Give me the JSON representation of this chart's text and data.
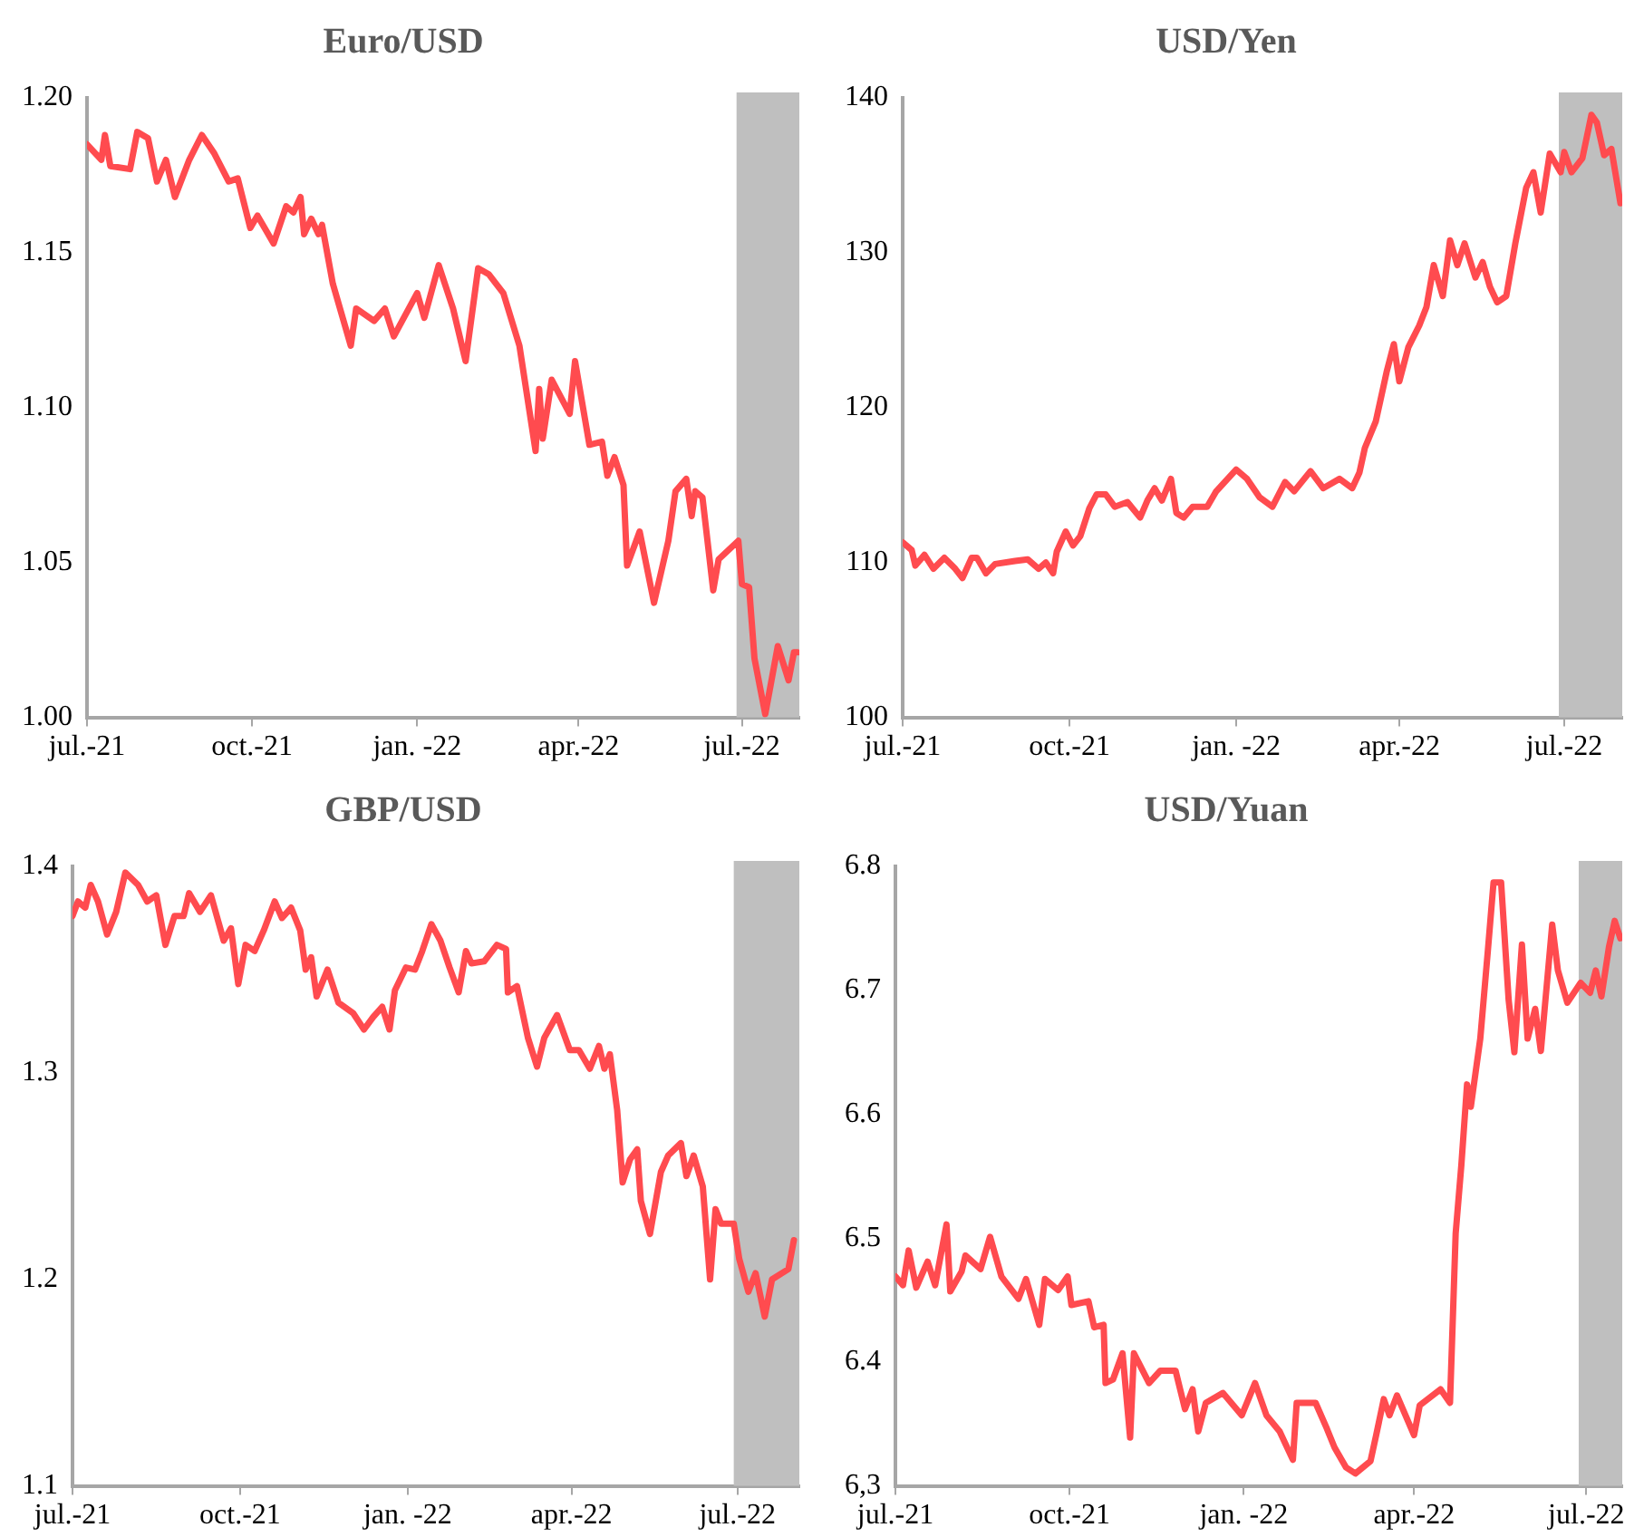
{
  "chart_data": [
    {
      "type": "line",
      "title": "Euro/USD",
      "color": "#ff4b4f",
      "marker": "none",
      "x": [
        "2021-07-01",
        "2021-07-09",
        "2021-07-11",
        "2021-07-14",
        "2021-07-25",
        "2021-07-29",
        "2021-08-04",
        "2021-08-09",
        "2021-08-14",
        "2021-08-19",
        "2021-08-27",
        "2021-09-03",
        "2021-09-10",
        "2021-09-18",
        "2021-09-23",
        "2021-09-30",
        "2021-10-04",
        "2021-10-13",
        "2021-10-20",
        "2021-10-24",
        "2021-10-28",
        "2021-10-30",
        "2021-11-03",
        "2021-11-07",
        "2021-11-09",
        "2021-11-15",
        "2021-11-25",
        "2021-11-28",
        "2021-12-08",
        "2021-12-14",
        "2021-12-19",
        "2022-01-01",
        "2022-01-05",
        "2022-01-13",
        "2022-01-21",
        "2022-01-28",
        "2022-02-04",
        "2022-02-10",
        "2022-02-18",
        "2022-02-27",
        "2022-03-08",
        "2022-03-10",
        "2022-03-12",
        "2022-03-17",
        "2022-03-27",
        "2022-03-30",
        "2022-04-07",
        "2022-04-14",
        "2022-04-17",
        "2022-04-21",
        "2022-04-26",
        "2022-04-28",
        "2022-05-05",
        "2022-05-13",
        "2022-05-21",
        "2022-05-25",
        "2022-05-31",
        "2022-06-03",
        "2022-06-05",
        "2022-06-09",
        "2022-06-15",
        "2022-06-18",
        "2022-06-29",
        "2022-07-01",
        "2022-07-05",
        "2022-07-08",
        "2022-07-14",
        "2022-07-21",
        "2022-07-27",
        "2022-07-30",
        "2022-08-01"
      ],
      "values": [
        1.185,
        1.18,
        1.188,
        1.178,
        1.177,
        1.189,
        1.187,
        1.173,
        1.18,
        1.168,
        1.18,
        1.188,
        1.182,
        1.173,
        1.174,
        1.158,
        1.162,
        1.153,
        1.165,
        1.163,
        1.168,
        1.156,
        1.161,
        1.156,
        1.159,
        1.14,
        1.12,
        1.132,
        1.128,
        1.132,
        1.123,
        1.137,
        1.129,
        1.146,
        1.132,
        1.115,
        1.145,
        1.143,
        1.137,
        1.12,
        1.086,
        1.106,
        1.09,
        1.109,
        1.098,
        1.115,
        1.088,
        1.089,
        1.078,
        1.084,
        1.075,
        1.049,
        1.06,
        1.037,
        1.057,
        1.073,
        1.077,
        1.065,
        1.073,
        1.071,
        1.041,
        1.051,
        1.057,
        1.043,
        1.042,
        1.019,
        1.001,
        1.023,
        1.012,
        1.021,
        1.021
      ],
      "xlim": [
        "2021-07-01",
        "2022-08-02"
      ],
      "xticks": [
        {
          "value": "2021-07-01",
          "label": "jul.-21"
        },
        {
          "value": "2021-10-01",
          "label": "oct.-21"
        },
        {
          "value": "2022-01-01",
          "label": "jan. -22"
        },
        {
          "value": "2022-04-01",
          "label": "apr.-22"
        },
        {
          "value": "2022-07-01",
          "label": "jul.-22"
        }
      ],
      "ylim": [
        1.0,
        1.2
      ],
      "yticks": [
        {
          "value": 1.0,
          "label": "1.00"
        },
        1.05,
        {
          "value": 1.1,
          "label": "1.10"
        },
        1.15,
        {
          "value": 1.2,
          "label": "1.20"
        }
      ],
      "bands": [
        {
          "axis": "x",
          "from": "2022-06-28",
          "to": "2022-08-02",
          "color": "#bfbfbf"
        }
      ]
    },
    {
      "type": "line",
      "title": "USD/Yen",
      "color": "#ff4b4f",
      "marker": "none",
      "x": [
        "2021-07-01",
        "2021-07-06",
        "2021-07-08",
        "2021-07-13",
        "2021-07-18",
        "2021-07-24",
        "2021-07-30",
        "2021-08-03",
        "2021-08-08",
        "2021-08-11",
        "2021-08-16",
        "2021-08-21",
        "2021-09-01",
        "2021-09-08",
        "2021-09-14",
        "2021-09-18",
        "2021-09-22",
        "2021-09-24",
        "2021-09-29",
        "2021-10-03",
        "2021-10-07",
        "2021-10-12",
        "2021-10-16",
        "2021-10-21",
        "2021-10-26",
        "2021-11-02",
        "2021-11-09",
        "2021-11-13",
        "2021-11-17",
        "2021-11-21",
        "2021-11-26",
        "2021-11-29",
        "2021-12-03",
        "2021-12-08",
        "2021-12-16",
        "2021-12-21",
        "2022-01-01",
        "2022-01-07",
        "2022-01-14",
        "2022-01-21",
        "2022-01-28",
        "2022-02-02",
        "2022-02-11",
        "2022-02-18",
        "2022-02-27",
        "2022-03-06",
        "2022-03-10",
        "2022-03-13",
        "2022-03-19",
        "2022-03-25",
        "2022-03-29",
        "2022-04-01",
        "2022-04-06",
        "2022-04-12",
        "2022-04-16",
        "2022-04-20",
        "2022-04-25",
        "2022-04-29",
        "2022-05-03",
        "2022-05-07",
        "2022-05-13",
        "2022-05-17",
        "2022-05-21",
        "2022-05-25",
        "2022-05-30",
        "2022-06-04",
        "2022-06-10",
        "2022-06-14",
        "2022-06-18",
        "2022-06-23",
        "2022-06-29",
        "2022-07-01",
        "2022-07-05",
        "2022-07-11",
        "2022-07-16",
        "2022-07-19",
        "2022-07-23",
        "2022-07-27",
        "2022-08-01"
      ],
      "values": [
        111.3,
        110.8,
        109.8,
        110.5,
        109.6,
        110.3,
        109.6,
        109.0,
        110.3,
        110.3,
        109.3,
        109.9,
        110.1,
        110.2,
        109.6,
        110.0,
        109.3,
        110.7,
        112.0,
        111.1,
        111.7,
        113.5,
        114.4,
        114.4,
        113.6,
        113.9,
        112.9,
        114.0,
        114.8,
        114.0,
        115.4,
        113.2,
        112.9,
        113.6,
        113.6,
        114.6,
        116.0,
        115.4,
        114.2,
        113.6,
        115.2,
        114.6,
        115.9,
        114.8,
        115.4,
        114.8,
        115.8,
        117.4,
        119.1,
        122.3,
        124.1,
        121.7,
        123.9,
        125.3,
        126.5,
        129.2,
        127.2,
        130.8,
        129.2,
        130.6,
        128.4,
        129.4,
        127.8,
        126.8,
        127.2,
        130.6,
        134.2,
        135.2,
        132.6,
        136.4,
        135.2,
        136.5,
        135.2,
        136.1,
        138.9,
        138.4,
        136.3,
        136.7,
        133.2
      ],
      "xlim": [
        "2021-07-01",
        "2022-08-02"
      ],
      "xticks": [
        {
          "value": "2021-07-01",
          "label": "jul.-21"
        },
        {
          "value": "2021-10-01",
          "label": "oct.-21"
        },
        {
          "value": "2022-01-01",
          "label": "jan. -22"
        },
        {
          "value": "2022-04-01",
          "label": "apr.-22"
        },
        {
          "value": "2022-07-01",
          "label": "jul.-22"
        }
      ],
      "ylim": [
        100,
        140
      ],
      "yticks": [
        100,
        110,
        120,
        130,
        140
      ],
      "bands": [
        {
          "axis": "x",
          "from": "2022-06-28",
          "to": "2022-08-02",
          "color": "#bfbfbf"
        }
      ]
    },
    {
      "type": "line",
      "title": "GBP/USD",
      "color": "#ff4b4f",
      "marker": "none",
      "x": [
        "2021-07-01",
        "2021-07-04",
        "2021-07-08",
        "2021-07-11",
        "2021-07-15",
        "2021-07-20",
        "2021-07-25",
        "2021-07-30",
        "2021-08-06",
        "2021-08-11",
        "2021-08-16",
        "2021-08-21",
        "2021-08-26",
        "2021-08-31",
        "2021-09-03",
        "2021-09-09",
        "2021-09-15",
        "2021-09-22",
        "2021-09-26",
        "2021-09-30",
        "2021-10-04",
        "2021-10-09",
        "2021-10-14",
        "2021-10-20",
        "2021-10-24",
        "2021-10-29",
        "2021-11-03",
        "2021-11-06",
        "2021-11-09",
        "2021-11-12",
        "2021-11-18",
        "2021-11-24",
        "2021-12-02",
        "2021-12-08",
        "2021-12-13",
        "2021-12-18",
        "2021-12-22",
        "2021-12-25",
        "2021-12-31",
        "2022-01-05",
        "2022-01-09",
        "2022-01-14",
        "2022-01-19",
        "2022-01-24",
        "2022-01-29",
        "2022-02-02",
        "2022-02-05",
        "2022-02-12",
        "2022-02-19",
        "2022-02-24",
        "2022-02-25",
        "2022-03-02",
        "2022-03-08",
        "2022-03-13",
        "2022-03-17",
        "2022-03-24",
        "2022-03-31",
        "2022-04-05",
        "2022-04-11",
        "2022-04-16",
        "2022-04-19",
        "2022-04-22",
        "2022-04-26",
        "2022-04-29",
        "2022-05-03",
        "2022-05-07",
        "2022-05-09",
        "2022-05-14",
        "2022-05-20",
        "2022-05-24",
        "2022-05-31",
        "2022-06-03",
        "2022-06-07",
        "2022-06-12",
        "2022-06-16",
        "2022-06-19",
        "2022-06-22",
        "2022-06-29",
        "2022-07-02",
        "2022-07-07",
        "2022-07-11",
        "2022-07-16",
        "2022-07-20",
        "2022-07-29",
        "2022-08-01"
      ],
      "values": [
        1.376,
        1.383,
        1.38,
        1.391,
        1.383,
        1.367,
        1.378,
        1.397,
        1.391,
        1.383,
        1.386,
        1.362,
        1.376,
        1.376,
        1.387,
        1.378,
        1.386,
        1.364,
        1.37,
        1.343,
        1.362,
        1.359,
        1.369,
        1.383,
        1.375,
        1.38,
        1.369,
        1.35,
        1.356,
        1.337,
        1.35,
        1.334,
        1.329,
        1.321,
        1.327,
        1.332,
        1.321,
        1.34,
        1.351,
        1.35,
        1.359,
        1.372,
        1.364,
        1.351,
        1.339,
        1.359,
        1.353,
        1.354,
        1.362,
        1.36,
        1.339,
        1.342,
        1.317,
        1.303,
        1.317,
        1.328,
        1.311,
        1.311,
        1.302,
        1.313,
        1.302,
        1.309,
        1.282,
        1.247,
        1.258,
        1.263,
        1.238,
        1.222,
        1.252,
        1.26,
        1.266,
        1.25,
        1.26,
        1.245,
        1.2,
        1.234,
        1.227,
        1.227,
        1.21,
        1.194,
        1.203,
        1.182,
        1.2,
        1.205,
        1.219
      ],
      "xlim": [
        "2021-07-01",
        "2022-08-04"
      ],
      "xticks": [
        {
          "value": "2021-07-01",
          "label": "jul.-21"
        },
        {
          "value": "2021-10-01",
          "label": "oct.-21"
        },
        {
          "value": "2022-01-01",
          "label": "jan. -22"
        },
        {
          "value": "2022-04-01",
          "label": "apr.-22"
        },
        {
          "value": "2022-07-01",
          "label": "jul.-22"
        }
      ],
      "ylim": [
        1.1,
        1.4
      ],
      "yticks": [
        1.1,
        1.2,
        1.3,
        1.4
      ],
      "bands": [
        {
          "axis": "x",
          "from": "2022-06-29",
          "to": "2022-08-04",
          "color": "#bfbfbf"
        }
      ]
    },
    {
      "type": "line",
      "title": "USD/Yuan",
      "color": "#ff4b4f",
      "marker": "none",
      "x": [
        "2021-07-01",
        "2021-07-05",
        "2021-07-08",
        "2021-07-12",
        "2021-07-18",
        "2021-07-22",
        "2021-07-28",
        "2021-07-30",
        "2021-08-05",
        "2021-08-07",
        "2021-08-15",
        "2021-08-20",
        "2021-08-26",
        "2021-09-04",
        "2021-09-08",
        "2021-09-15",
        "2021-09-18",
        "2021-09-25",
        "2021-09-30",
        "2021-10-02",
        "2021-10-11",
        "2021-10-14",
        "2021-10-19",
        "2021-10-20",
        "2021-10-24",
        "2021-10-29",
        "2021-11-02",
        "2021-11-04",
        "2021-11-12",
        "2021-11-18",
        "2021-11-26",
        "2021-12-01",
        "2021-12-05",
        "2021-12-08",
        "2021-12-12",
        "2021-12-21",
        "2021-12-31",
        "2022-01-07",
        "2022-01-13",
        "2022-01-20",
        "2022-01-27",
        "2022-01-29",
        "2022-02-08",
        "2022-02-14",
        "2022-02-18",
        "2022-02-24",
        "2022-03-01",
        "2022-03-09",
        "2022-03-12",
        "2022-03-16",
        "2022-03-19",
        "2022-03-23",
        "2022-04-01",
        "2022-04-04",
        "2022-04-15",
        "2022-04-20",
        "2022-04-23",
        "2022-04-26",
        "2022-04-29",
        "2022-05-01",
        "2022-05-06",
        "2022-05-10",
        "2022-05-13",
        "2022-05-17",
        "2022-05-21",
        "2022-05-24",
        "2022-05-28",
        "2022-05-31",
        "2022-06-04",
        "2022-06-07",
        "2022-06-13",
        "2022-06-16",
        "2022-06-21",
        "2022-06-28",
        "2022-07-03",
        "2022-07-06",
        "2022-07-09",
        "2022-07-13",
        "2022-07-16",
        "2022-07-19"
      ],
      "values": [
        6.469,
        6.462,
        6.49,
        6.46,
        6.481,
        6.462,
        6.511,
        6.457,
        6.473,
        6.486,
        6.475,
        6.501,
        6.469,
        6.451,
        6.467,
        6.43,
        6.467,
        6.458,
        6.469,
        6.446,
        6.449,
        6.428,
        6.43,
        6.383,
        6.386,
        6.407,
        6.339,
        6.407,
        6.383,
        6.393,
        6.393,
        6.362,
        6.378,
        6.344,
        6.367,
        6.375,
        6.357,
        6.383,
        6.357,
        6.344,
        6.321,
        6.367,
        6.367,
        6.346,
        6.331,
        6.315,
        6.31,
        6.32,
        6.341,
        6.37,
        6.357,
        6.373,
        6.341,
        6.365,
        6.378,
        6.367,
        6.504,
        6.559,
        6.624,
        6.606,
        6.661,
        6.732,
        6.787,
        6.787,
        6.692,
        6.65,
        6.737,
        6.661,
        6.685,
        6.651,
        6.753,
        6.716,
        6.69,
        6.706,
        6.698,
        6.716,
        6.695,
        6.735,
        6.756,
        6.742
      ],
      "xlim": [
        "2021-07-01",
        "2022-07-20"
      ],
      "xticks": [
        {
          "value": "2021-07-01",
          "label": "jul.-21"
        },
        {
          "value": "2021-10-01",
          "label": "oct.-21"
        },
        {
          "value": "2022-01-01",
          "label": "jan. -22"
        },
        {
          "value": "2022-04-01",
          "label": "apr.-22"
        },
        {
          "value": "2022-07-01",
          "label": "jul.-22"
        }
      ],
      "ylim": [
        6.3,
        6.8
      ],
      "yticks": [
        {
          "value": 6.3,
          "label": "6,3"
        },
        6.4,
        6.5,
        6.6,
        6.7,
        6.8
      ],
      "bands": [
        {
          "axis": "x",
          "from": "2022-06-27",
          "to": "2022-07-20",
          "color": "#bfbfbf"
        }
      ]
    }
  ]
}
